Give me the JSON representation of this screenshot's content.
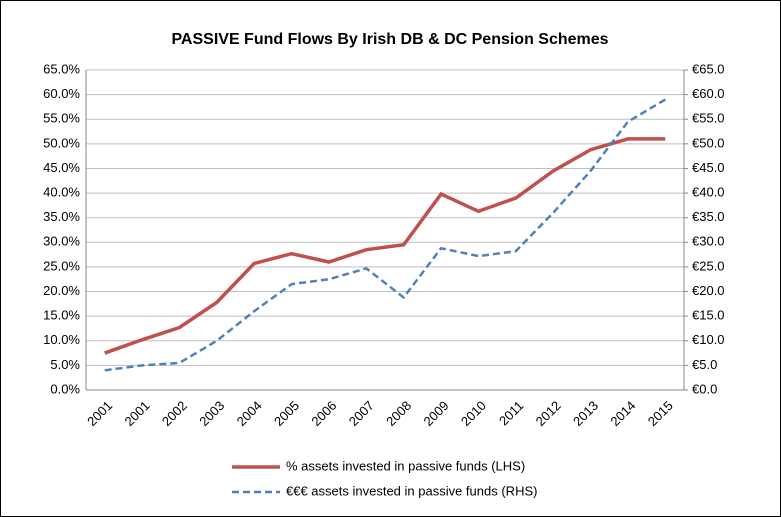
{
  "chart_data": {
    "type": "line",
    "title": "PASSIVE Fund Flows By Irish DB & DC Pension Schemes",
    "categories": [
      "2001",
      "2001",
      "2002",
      "2003",
      "2004",
      "2005",
      "2006",
      "2007",
      "2008",
      "2009",
      "2010",
      "2011",
      "2012",
      "2013",
      "2014",
      "2015"
    ],
    "series": [
      {
        "name": "% assets invested in passive funds (LHS)",
        "color": "#c0504d",
        "axis": "y",
        "values": [
          7.5,
          10.2,
          12.7,
          17.8,
          25.7,
          27.7,
          26,
          28.5,
          29.5,
          39.8,
          36.3,
          39,
          44.5,
          48.8,
          51,
          51
        ]
      },
      {
        "name": "€€€ assets invested in passive funds (RHS)",
        "color": "#4f81bd",
        "axis": "y2",
        "dash": true,
        "values": [
          4,
          5,
          5.5,
          10,
          16,
          21.5,
          22.5,
          24.7,
          18.8,
          28.8,
          27.2,
          28.2,
          36,
          44.5,
          54.5,
          59
        ]
      }
    ],
    "ylim": [
      0,
      65
    ],
    "yticks": [
      {
        "value": 0,
        "label": "0.0%"
      },
      {
        "value": 5,
        "label": "5.0%"
      },
      {
        "value": 10,
        "label": "10.0%"
      },
      {
        "value": 15,
        "label": "15.0%"
      },
      {
        "value": 20,
        "label": "20.0%"
      },
      {
        "value": 25,
        "label": "25.0%"
      },
      {
        "value": 30,
        "label": "30.0%"
      },
      {
        "value": 35,
        "label": "35.0%"
      },
      {
        "value": 40,
        "label": "40.0%"
      },
      {
        "value": 45,
        "label": "45.0%"
      },
      {
        "value": 50,
        "label": "50.0%"
      },
      {
        "value": 55,
        "label": "55.0%"
      },
      {
        "value": 60,
        "label": "60.0%"
      },
      {
        "value": 65,
        "label": "65.0%"
      }
    ],
    "y2lim": [
      0,
      65
    ],
    "y2ticks": [
      {
        "value": 0,
        "label": "€0.0"
      },
      {
        "value": 5,
        "label": "€5.0"
      },
      {
        "value": 10,
        "label": "€10.0"
      },
      {
        "value": 15,
        "label": "€15.0"
      },
      {
        "value": 20,
        "label": "€20.0"
      },
      {
        "value": 25,
        "label": "€25.0"
      },
      {
        "value": 30,
        "label": "€30.0"
      },
      {
        "value": 35,
        "label": "€35.0"
      },
      {
        "value": 40,
        "label": "€40.0"
      },
      {
        "value": 45,
        "label": "€45.0"
      },
      {
        "value": 50,
        "label": "€50.0"
      },
      {
        "value": 55,
        "label": "€55.0"
      },
      {
        "value": 60,
        "label": "€60.0"
      },
      {
        "value": 65,
        "label": "€65.0"
      }
    ],
    "grid": true
  }
}
